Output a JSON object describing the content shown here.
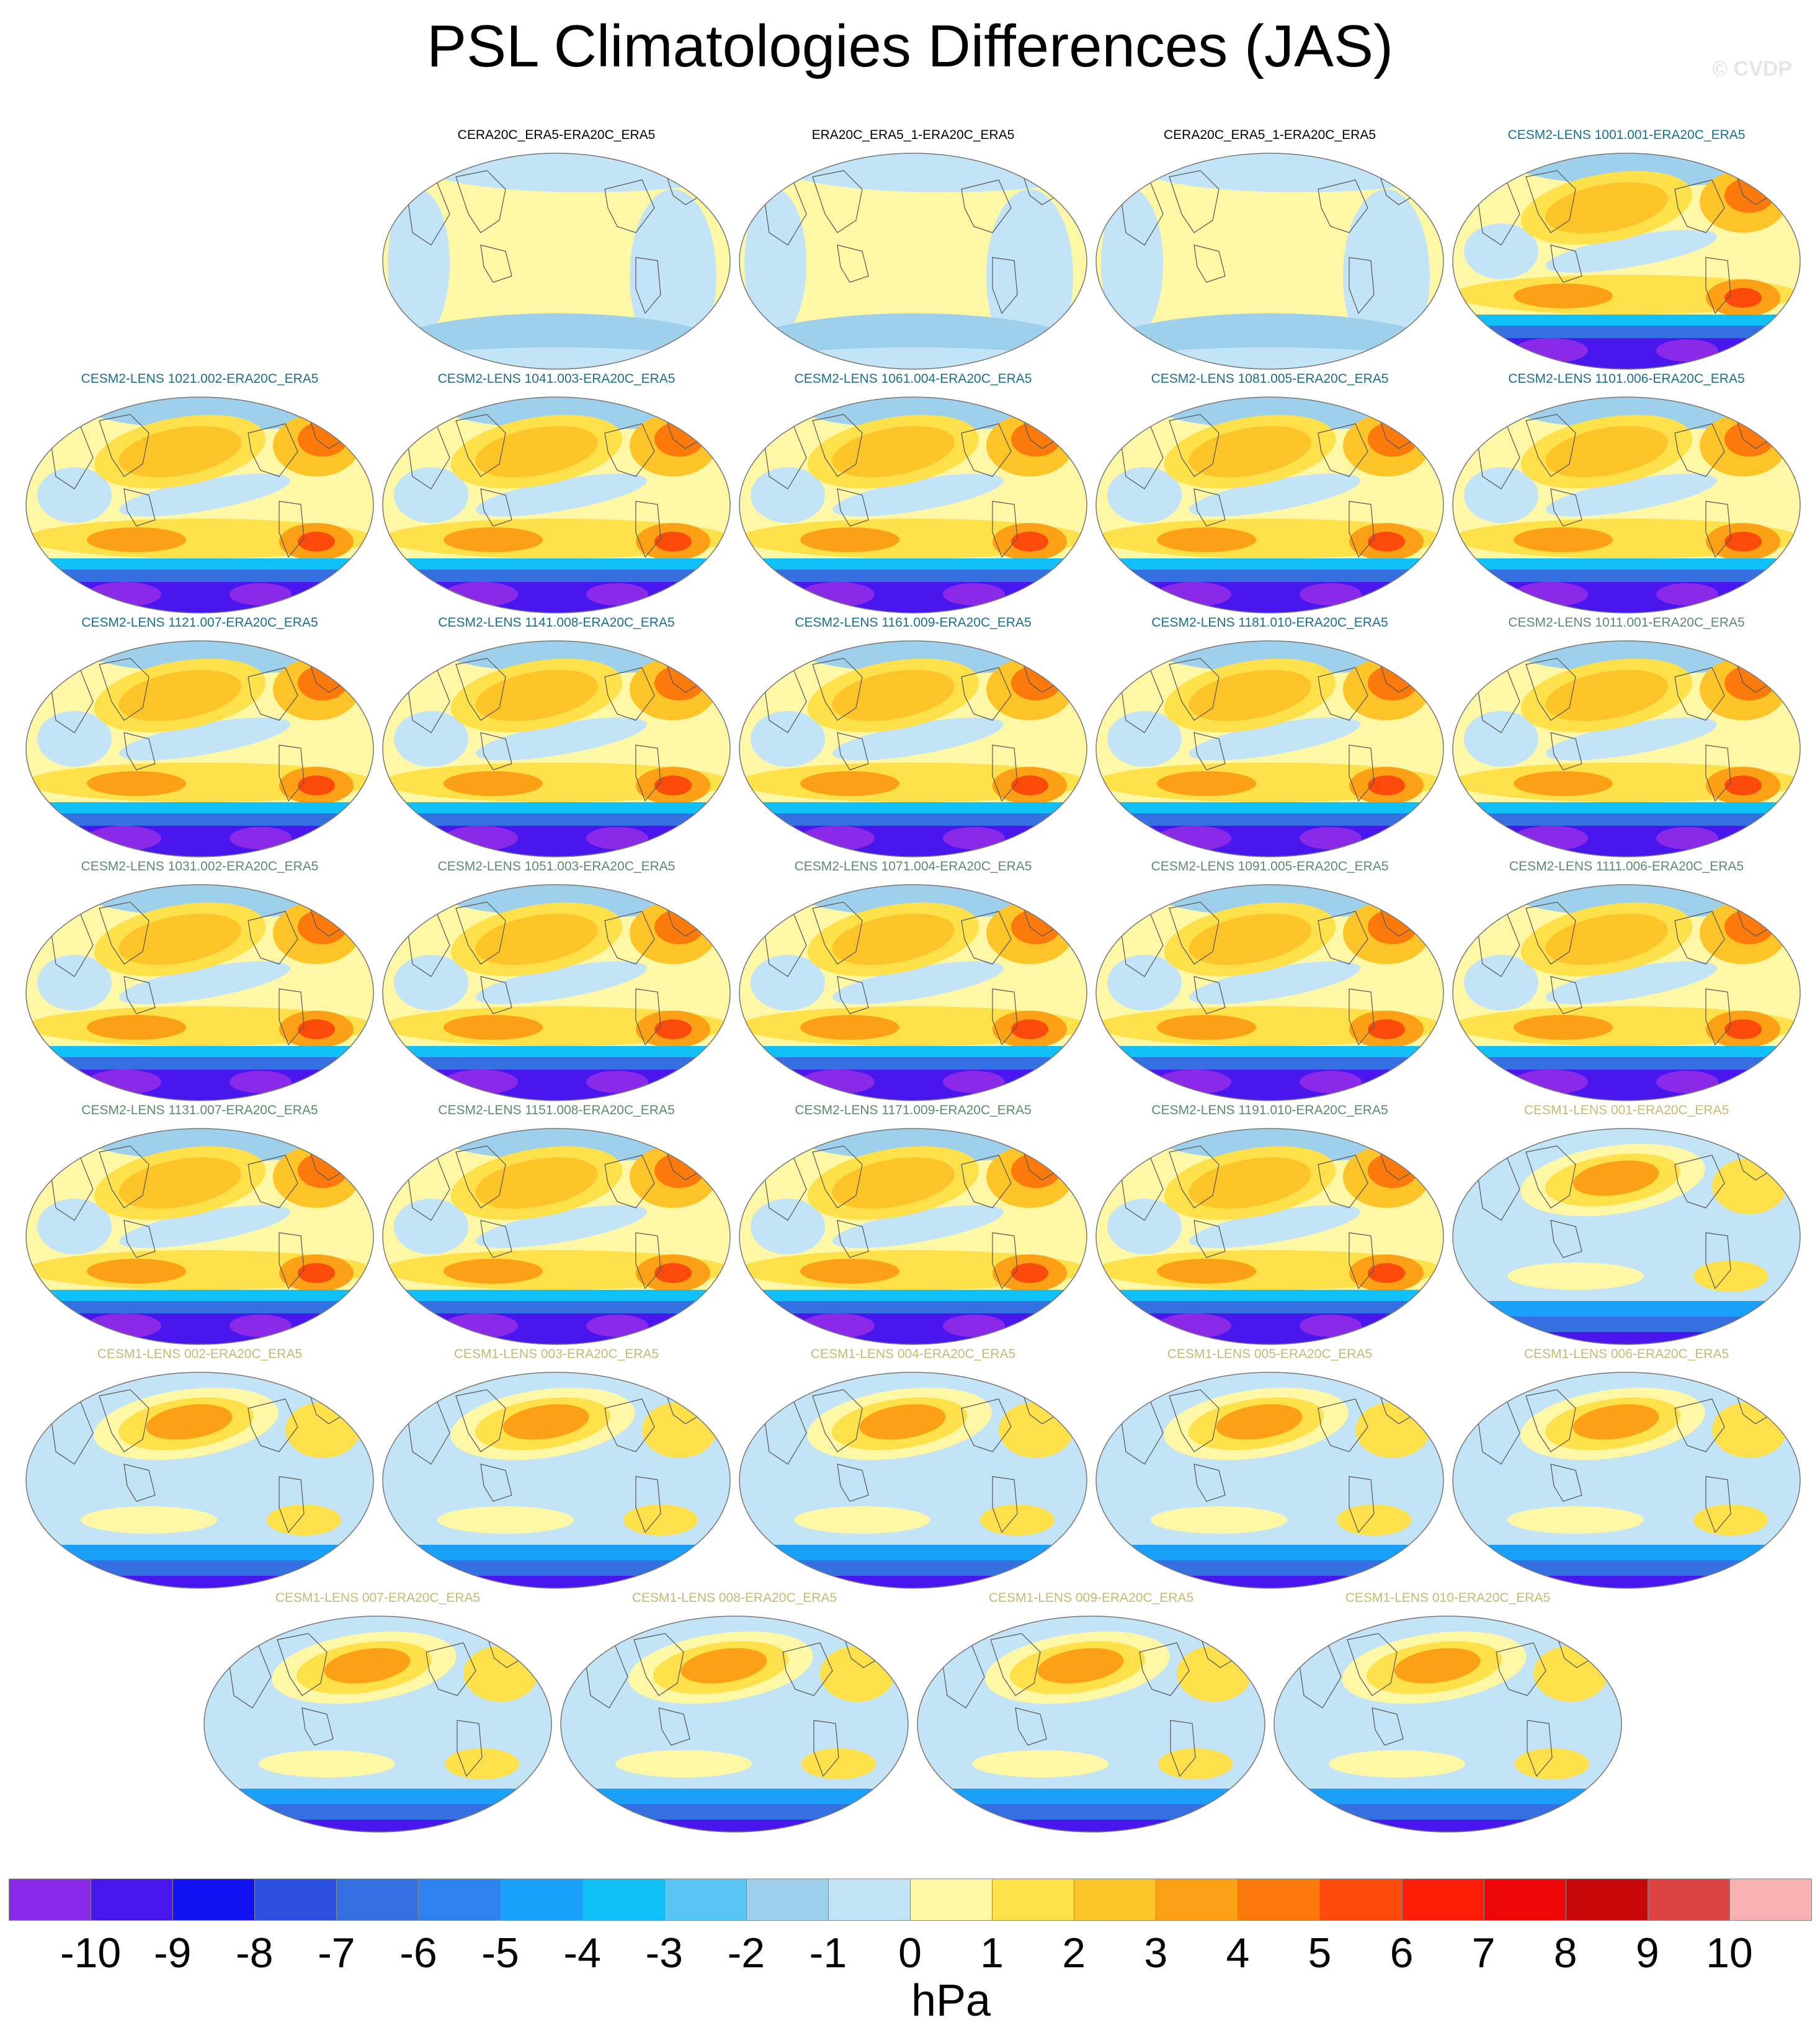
{
  "title": "PSL Climatologies Differences (JAS)",
  "watermark": "© CVDP",
  "colors": {
    "obs_title": "#000000",
    "cesm2_blue_title": "#1a6e8e",
    "cesm2_green_title": "#5c8a6c",
    "cesm1_title": "#c8b874",
    "coastline": "#555555"
  },
  "panels": [
    {
      "label": "CERA20C_ERA5-ERA20C_ERA5",
      "group": "obs"
    },
    {
      "label": "ERA20C_ERA5_1-ERA20C_ERA5",
      "group": "obs"
    },
    {
      "label": "CERA20C_ERA5_1-ERA20C_ERA5",
      "group": "obs"
    },
    {
      "label": "CESM2-LENS 1001.001-ERA20C_ERA5",
      "group": "cesm2a"
    },
    {
      "label": "CESM2-LENS 1021.002-ERA20C_ERA5",
      "group": "cesm2a"
    },
    {
      "label": "CESM2-LENS 1041.003-ERA20C_ERA5",
      "group": "cesm2a"
    },
    {
      "label": "CESM2-LENS 1061.004-ERA20C_ERA5",
      "group": "cesm2a"
    },
    {
      "label": "CESM2-LENS 1081.005-ERA20C_ERA5",
      "group": "cesm2a"
    },
    {
      "label": "CESM2-LENS 1101.006-ERA20C_ERA5",
      "group": "cesm2a"
    },
    {
      "label": "CESM2-LENS 1121.007-ERA20C_ERA5",
      "group": "cesm2a"
    },
    {
      "label": "CESM2-LENS 1141.008-ERA20C_ERA5",
      "group": "cesm2a"
    },
    {
      "label": "CESM2-LENS 1161.009-ERA20C_ERA5",
      "group": "cesm2a"
    },
    {
      "label": "CESM2-LENS 1181.010-ERA20C_ERA5",
      "group": "cesm2a"
    },
    {
      "label": "CESM2-LENS 1011.001-ERA20C_ERA5",
      "group": "cesm2b"
    },
    {
      "label": "CESM2-LENS 1031.002-ERA20C_ERA5",
      "group": "cesm2b"
    },
    {
      "label": "CESM2-LENS 1051.003-ERA20C_ERA5",
      "group": "cesm2b"
    },
    {
      "label": "CESM2-LENS 1071.004-ERA20C_ERA5",
      "group": "cesm2b"
    },
    {
      "label": "CESM2-LENS 1091.005-ERA20C_ERA5",
      "group": "cesm2b"
    },
    {
      "label": "CESM2-LENS 1111.006-ERA20C_ERA5",
      "group": "cesm2b"
    },
    {
      "label": "CESM2-LENS 1131.007-ERA20C_ERA5",
      "group": "cesm2b"
    },
    {
      "label": "CESM2-LENS 1151.008-ERA20C_ERA5",
      "group": "cesm2b"
    },
    {
      "label": "CESM2-LENS 1171.009-ERA20C_ERA5",
      "group": "cesm2b"
    },
    {
      "label": "CESM2-LENS 1191.010-ERA20C_ERA5",
      "group": "cesm2b"
    },
    {
      "label": "CESM1-LENS 001-ERA20C_ERA5",
      "group": "cesm1"
    },
    {
      "label": "CESM1-LENS 002-ERA20C_ERA5",
      "group": "cesm1"
    },
    {
      "label": "CESM1-LENS 003-ERA20C_ERA5",
      "group": "cesm1"
    },
    {
      "label": "CESM1-LENS 004-ERA20C_ERA5",
      "group": "cesm1"
    },
    {
      "label": "CESM1-LENS 005-ERA20C_ERA5",
      "group": "cesm1"
    },
    {
      "label": "CESM1-LENS 006-ERA20C_ERA5",
      "group": "cesm1"
    },
    {
      "label": "CESM1-LENS 007-ERA20C_ERA5",
      "group": "cesm1"
    },
    {
      "label": "CESM1-LENS 008-ERA20C_ERA5",
      "group": "cesm1"
    },
    {
      "label": "CESM1-LENS 009-ERA20C_ERA5",
      "group": "cesm1"
    },
    {
      "label": "CESM1-LENS 010-ERA20C_ERA5",
      "group": "cesm1"
    }
  ],
  "colorbar": {
    "units": "hPa",
    "labels": [
      "-10",
      "-9",
      "-8",
      "-7",
      "-6",
      "-5",
      "-4",
      "-3",
      "-2",
      "-1",
      "0",
      "1",
      "2",
      "3",
      "4",
      "5",
      "6",
      "7",
      "8",
      "9",
      "10"
    ],
    "colors": [
      "#8a2ae8",
      "#4a16ee",
      "#1111f2",
      "#2c50e0",
      "#3470e0",
      "#2e82f0",
      "#1aa0f8",
      "#10c0f6",
      "#5ac4f4",
      "#9ed0ec",
      "#c2e4f6",
      "#fef8a6",
      "#fee04a",
      "#fdc42a",
      "#fca016",
      "#fc7a0c",
      "#fc4a0a",
      "#fc1c08",
      "#ee0606",
      "#c80808",
      "#dc4444",
      "#f8b0b0"
    ]
  }
}
